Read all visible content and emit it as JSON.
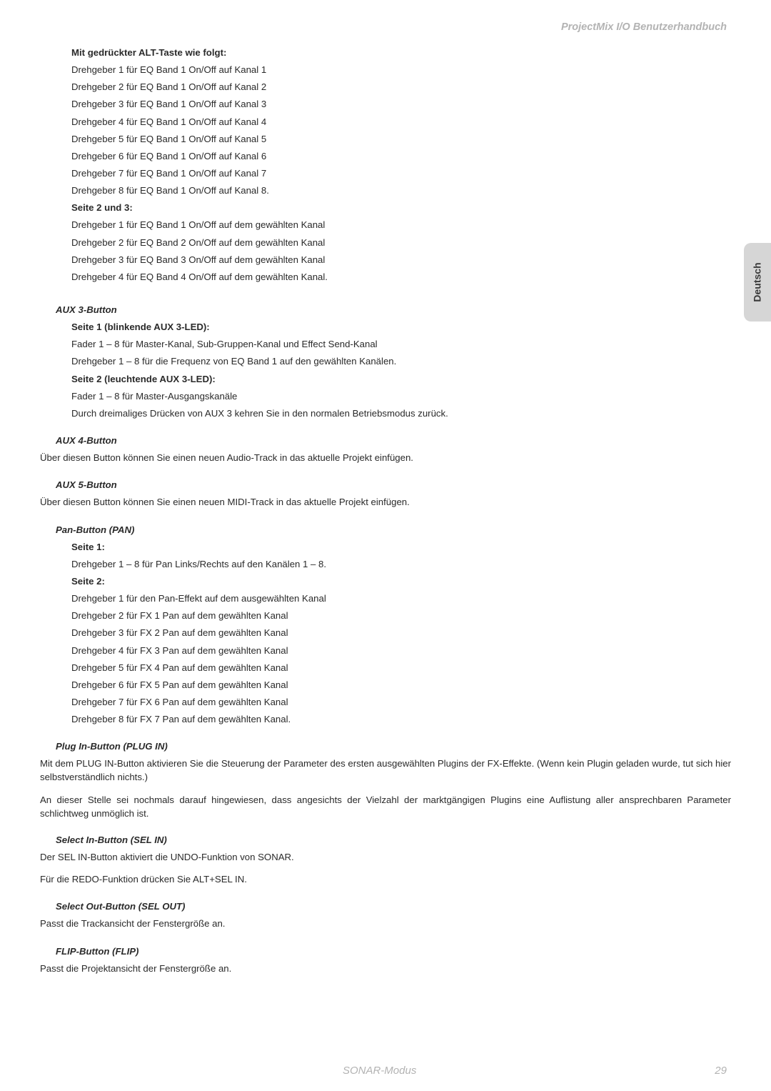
{
  "header": {
    "title": "ProjectMix I/O Benutzerhandbuch"
  },
  "sidetab": {
    "label": "Deutsch"
  },
  "footer": {
    "mode": "SONAR-Modus",
    "page": "29"
  },
  "sections": {
    "alt": {
      "heading": "Mit gedrückter ALT-Taste wie folgt:",
      "lines": [
        "Drehgeber 1 für EQ Band 1 On/Off auf Kanal 1",
        "Drehgeber 2 für EQ Band 1 On/Off auf Kanal 2",
        "Drehgeber 3 für EQ Band 1 On/Off auf Kanal 3",
        "Drehgeber 4 für EQ Band 1 On/Off auf Kanal 4",
        "Drehgeber 5 für EQ Band 1 On/Off auf Kanal 5",
        "Drehgeber 6 für EQ Band 1 On/Off auf Kanal 6",
        "Drehgeber 7 für EQ Band 1 On/Off auf Kanal 7",
        "Drehgeber 8 für EQ Band 1 On/Off auf Kanal 8."
      ],
      "sub23_heading": "Seite 2 und 3:",
      "sub23_lines": [
        "Drehgeber 1 für EQ Band 1 On/Off auf dem gewählten Kanal",
        "Drehgeber 2 für EQ Band 2 On/Off auf dem gewählten Kanal",
        "Drehgeber 3 für EQ Band 3 On/Off auf dem gewählten Kanal",
        "Drehgeber 4 für EQ Band 4 On/Off auf dem gewählten Kanal."
      ]
    },
    "aux3": {
      "heading": "AUX 3-Button",
      "p1_heading": "Seite 1 (blinkende AUX 3-LED):",
      "p1_lines": [
        "Fader 1 – 8 für Master-Kanal, Sub-Gruppen-Kanal und Effect Send-Kanal",
        "Drehgeber 1 – 8 für die Frequenz von EQ Band 1 auf den gewählten Kanälen."
      ],
      "p2_heading": "Seite 2 (leuchtende AUX 3-LED):",
      "p2_lines": [
        "Fader 1 – 8 für Master-Ausgangskanäle",
        "Durch dreimaliges Drücken von AUX 3 kehren Sie in den normalen Betriebsmodus zurück."
      ]
    },
    "aux4": {
      "heading": "AUX 4-Button",
      "text": "Über diesen Button können Sie einen neuen Audio-Track in das aktuelle Projekt einfügen."
    },
    "aux5": {
      "heading": "AUX 5-Button",
      "text": "Über diesen Button können Sie einen neuen MIDI-Track in das aktuelle Projekt einfügen."
    },
    "pan": {
      "heading": "Pan-Button (PAN)",
      "p1_heading": "Seite 1:",
      "p1_line": "Drehgeber 1 – 8 für Pan Links/Rechts auf den Kanälen 1 – 8.",
      "p2_heading": "Seite 2:",
      "p2_lines": [
        "Drehgeber 1 für den Pan-Effekt auf dem ausgewählten Kanal",
        "Drehgeber 2 für FX 1 Pan auf dem gewählten Kanal",
        "Drehgeber 3 für FX 2 Pan auf dem gewählten Kanal",
        "Drehgeber 4 für FX 3 Pan auf dem gewählten Kanal",
        "Drehgeber 5 für FX 4 Pan auf dem gewählten Kanal",
        "Drehgeber 6 für FX 5 Pan auf dem gewählten Kanal",
        "Drehgeber 7 für FX 6 Pan auf dem gewählten Kanal",
        "Drehgeber 8 für FX 7 Pan auf dem gewählten Kanal."
      ]
    },
    "plugin": {
      "heading": "Plug In-Button (PLUG IN)",
      "para1": "Mit dem PLUG IN-Button aktivieren Sie die Steuerung der Parameter des ersten ausgewählten Plugins der FX-Effekte. (Wenn kein Plugin geladen wurde, tut sich hier selbstverständlich nichts.)",
      "para2": "An dieser Stelle sei nochmals darauf hingewiesen, dass angesichts der Vielzahl der marktgängigen Plugins eine Auflistung aller ansprechbaren Parameter schlichtweg unmöglich ist."
    },
    "selin": {
      "heading": "Select In-Button (SEL IN)",
      "para1": "Der SEL IN-Button aktiviert die UNDO-Funktion von SONAR.",
      "para2": "Für die REDO-Funktion drücken Sie ALT+SEL IN."
    },
    "selout": {
      "heading": "Select Out-Button (SEL OUT)",
      "text": "Passt die Trackansicht der Fenstergröße an."
    },
    "flip": {
      "heading": "FLIP-Button (FLIP)",
      "text": "Passt die Projektansicht der Fenstergröße an."
    }
  }
}
